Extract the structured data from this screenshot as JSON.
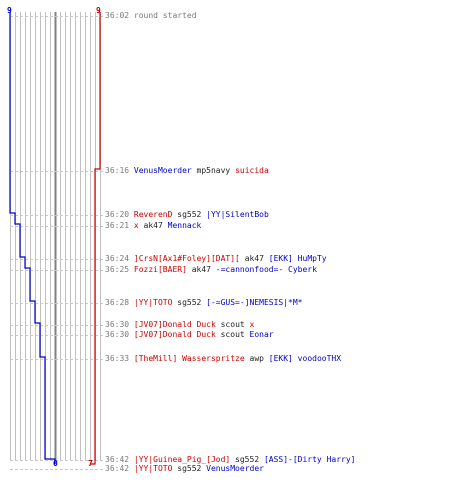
{
  "colors": {
    "red": "#cc0000",
    "blue": "#0000cc",
    "grid": "#c0c0c0",
    "grid_dark": "#808080",
    "dash": "#c8c8c8",
    "time": "#7a7a7a",
    "weapon": "#222222"
  },
  "scores": {
    "blue_start": "9",
    "red_start": "9",
    "blue_end": "0",
    "red_end": "7"
  },
  "events": [
    {
      "time": "36:02",
      "segments": [
        {
          "text": "round started",
          "team": "time"
        }
      ]
    },
    {
      "time": "36:16",
      "segments": [
        {
          "text": "VenusMoerder",
          "team": "blue"
        },
        {
          "text": " mp5navy ",
          "team": "weapon"
        },
        {
          "text": "suicida",
          "team": "red"
        }
      ]
    },
    {
      "time": "36:20",
      "segments": [
        {
          "text": "ReverenD",
          "team": "red"
        },
        {
          "text": " sg552 ",
          "team": "weapon"
        },
        {
          "text": "|YY|SilentBob",
          "team": "blue"
        }
      ]
    },
    {
      "time": "36:21",
      "segments": [
        {
          "text": "x",
          "team": "red"
        },
        {
          "text": " ak47 ",
          "team": "weapon"
        },
        {
          "text": "Mennack",
          "team": "blue"
        }
      ]
    },
    {
      "time": "36:24",
      "segments": [
        {
          "text": "]CrsN[Ax1#Foley][DAT][",
          "team": "red"
        },
        {
          "text": " ak47 ",
          "team": "weapon"
        },
        {
          "text": "[EKK] HuMpTy",
          "team": "blue"
        }
      ]
    },
    {
      "time": "36:25",
      "segments": [
        {
          "text": "Fozzi[BAER]",
          "team": "red"
        },
        {
          "text": " ak47 ",
          "team": "weapon"
        },
        {
          "text": "-=cannonfood=- Cyberk",
          "team": "blue"
        }
      ]
    },
    {
      "time": "36:28",
      "segments": [
        {
          "text": "|YY|TOTO",
          "team": "red"
        },
        {
          "text": " sg552 ",
          "team": "weapon"
        },
        {
          "text": "[-=GUS=-]NEMESIS|*M*",
          "team": "blue"
        }
      ]
    },
    {
      "time": "36:30",
      "segments": [
        {
          "text": "[JV07]Donald Duck",
          "team": "red"
        },
        {
          "text": " scout ",
          "team": "weapon"
        },
        {
          "text": "x",
          "team": "red"
        }
      ]
    },
    {
      "time": "36:30",
      "segments": [
        {
          "text": "[JV07]Donald Duck",
          "team": "red"
        },
        {
          "text": " scout ",
          "team": "weapon"
        },
        {
          "text": "Eonar",
          "team": "blue"
        }
      ]
    },
    {
      "time": "36:33",
      "segments": [
        {
          "text": "[TheMill] Wasserspritze",
          "team": "red"
        },
        {
          "text": " awp ",
          "team": "weapon"
        },
        {
          "text": "[EKK] voodooTHX",
          "team": "blue"
        }
      ]
    },
    {
      "time": "36:42",
      "segments": [
        {
          "text": "|YY|Guinea_Pig_[Jod]",
          "team": "red"
        },
        {
          "text": " sg552 ",
          "team": "weapon"
        },
        {
          "text": "[ASS]-[Dirty Harry]",
          "team": "blue"
        }
      ]
    },
    {
      "time": "36:42",
      "segments": [
        {
          "text": "|YY|TOTO",
          "team": "red"
        },
        {
          "text": " sg552 ",
          "team": "weapon"
        },
        {
          "text": "VenusMoerder",
          "team": "blue"
        }
      ]
    }
  ]
}
